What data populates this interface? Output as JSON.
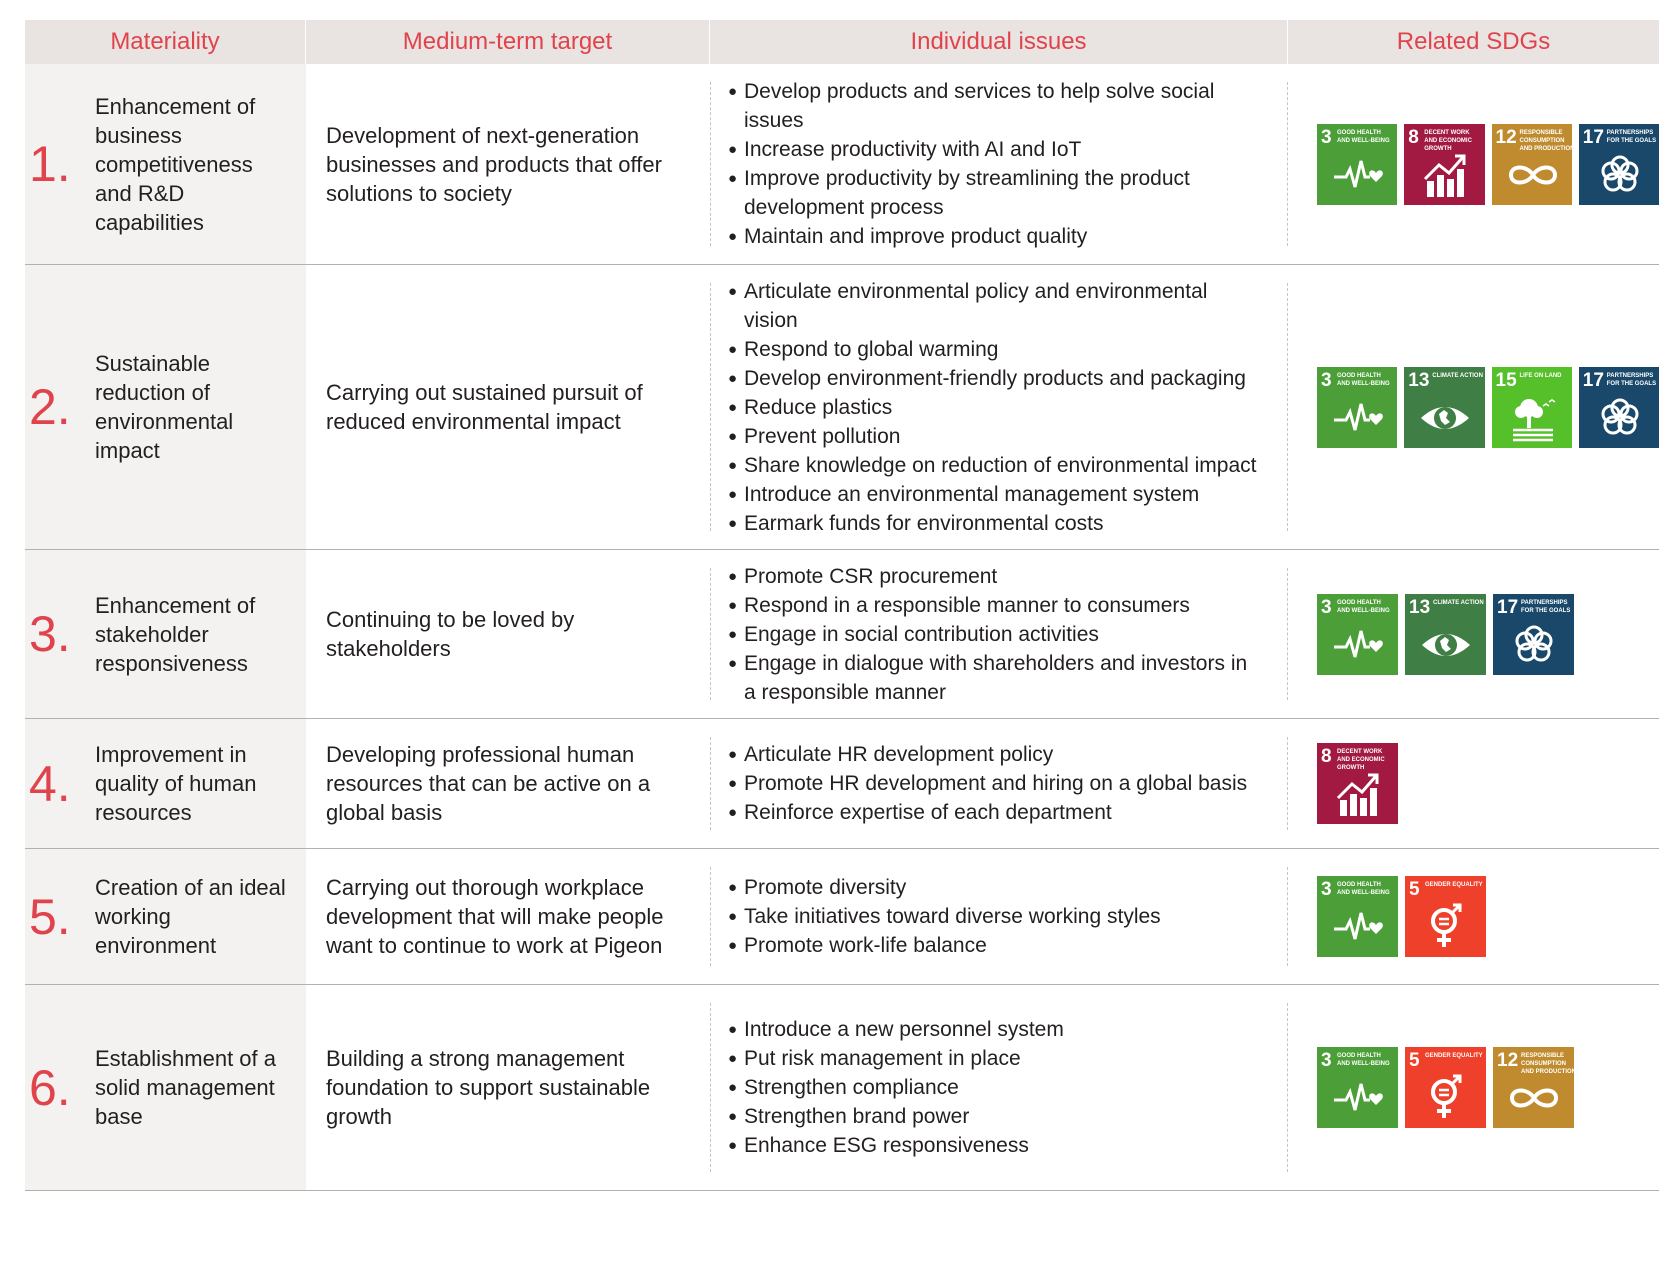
{
  "header": {
    "materiality": "Materiality",
    "target": "Medium-term target",
    "issues": "Individual issues",
    "sdgs": "Related SDGs"
  },
  "colors": {
    "accent": "#e0434c",
    "header_bg": "#e9e4e1",
    "sdg3": "#4c9f38",
    "sdg5": "#ef402b",
    "sdg8": "#a21942",
    "sdg12": "#bf8b2e",
    "sdg13": "#3f7e44",
    "sdg15": "#56c02b",
    "sdg17": "#19486a"
  },
  "sdg_labels": {
    "3": "GOOD HEALTH AND WELL-BEING",
    "5": "GENDER EQUALITY",
    "8": "DECENT WORK AND ECONOMIC GROWTH",
    "12": "RESPONSIBLE CONSUMPTION AND PRODUCTION",
    "13": "CLIMATE ACTION",
    "15": "LIFE ON LAND",
    "17": "PARTNERSHIPS FOR THE GOALS"
  },
  "rows": [
    {
      "num": "1.",
      "materiality": "Enhancement of business competitiveness and R&D capabilities",
      "target": "Development of next-generation businesses and products that offer solutions to society",
      "issues": [
        "Develop products and services to help solve social issues",
        "Increase productivity with AI and IoT",
        "Improve productivity by streamlining the product development process",
        "Maintain and improve product quality"
      ],
      "sdgs": [
        "3",
        "8",
        "12",
        "17"
      ]
    },
    {
      "num": "2.",
      "materiality": "Sustainable reduction of environmental impact",
      "target": "Carrying out sustained pursuit of reduced environmental impact",
      "issues": [
        "Articulate environmental policy and environmental vision",
        "Respond to global warming",
        "Develop environment-friendly products and packaging",
        "Reduce plastics",
        "Prevent pollution",
        "Share knowledge on reduction of environmental impact",
        "Introduce an environmental management system",
        "Earmark funds for environmental costs"
      ],
      "sdgs": [
        "3",
        "13",
        "15",
        "17"
      ]
    },
    {
      "num": "3.",
      "materiality": "Enhancement of stakeholder responsiveness",
      "target": "Continuing to be loved by stakeholders",
      "issues": [
        "Promote CSR procurement",
        "Respond in a responsible manner to consumers",
        "Engage in social contribution activities",
        "Engage in dialogue with shareholders and investors in a responsible manner"
      ],
      "sdgs": [
        "3",
        "13",
        "17"
      ]
    },
    {
      "num": "4.",
      "materiality": "Improvement in quality of human resources",
      "target": "Developing professional human resources that can be active on a global basis",
      "issues": [
        "Articulate HR development policy",
        "Promote HR development and hiring on a global basis",
        "Reinforce expertise of each department"
      ],
      "sdgs": [
        "8"
      ]
    },
    {
      "num": "5.",
      "materiality": "Creation of an ideal working environment",
      "target": "Carrying out thorough workplace development that will make people want to continue to work at Pigeon",
      "issues": [
        "Promote diversity",
        "Take initiatives toward diverse working styles",
        "Promote work-life balance"
      ],
      "sdgs": [
        "3",
        "5"
      ]
    },
    {
      "num": "6.",
      "materiality": "Establishment of a solid management base",
      "target": "Building a strong management foundation to support sustainable growth",
      "issues": [
        "Introduce a new personnel system",
        "Put risk management in place",
        "Strengthen compliance",
        "Strengthen brand power",
        "Enhance ESG responsiveness"
      ],
      "sdgs": [
        "3",
        "5",
        "12"
      ]
    }
  ]
}
